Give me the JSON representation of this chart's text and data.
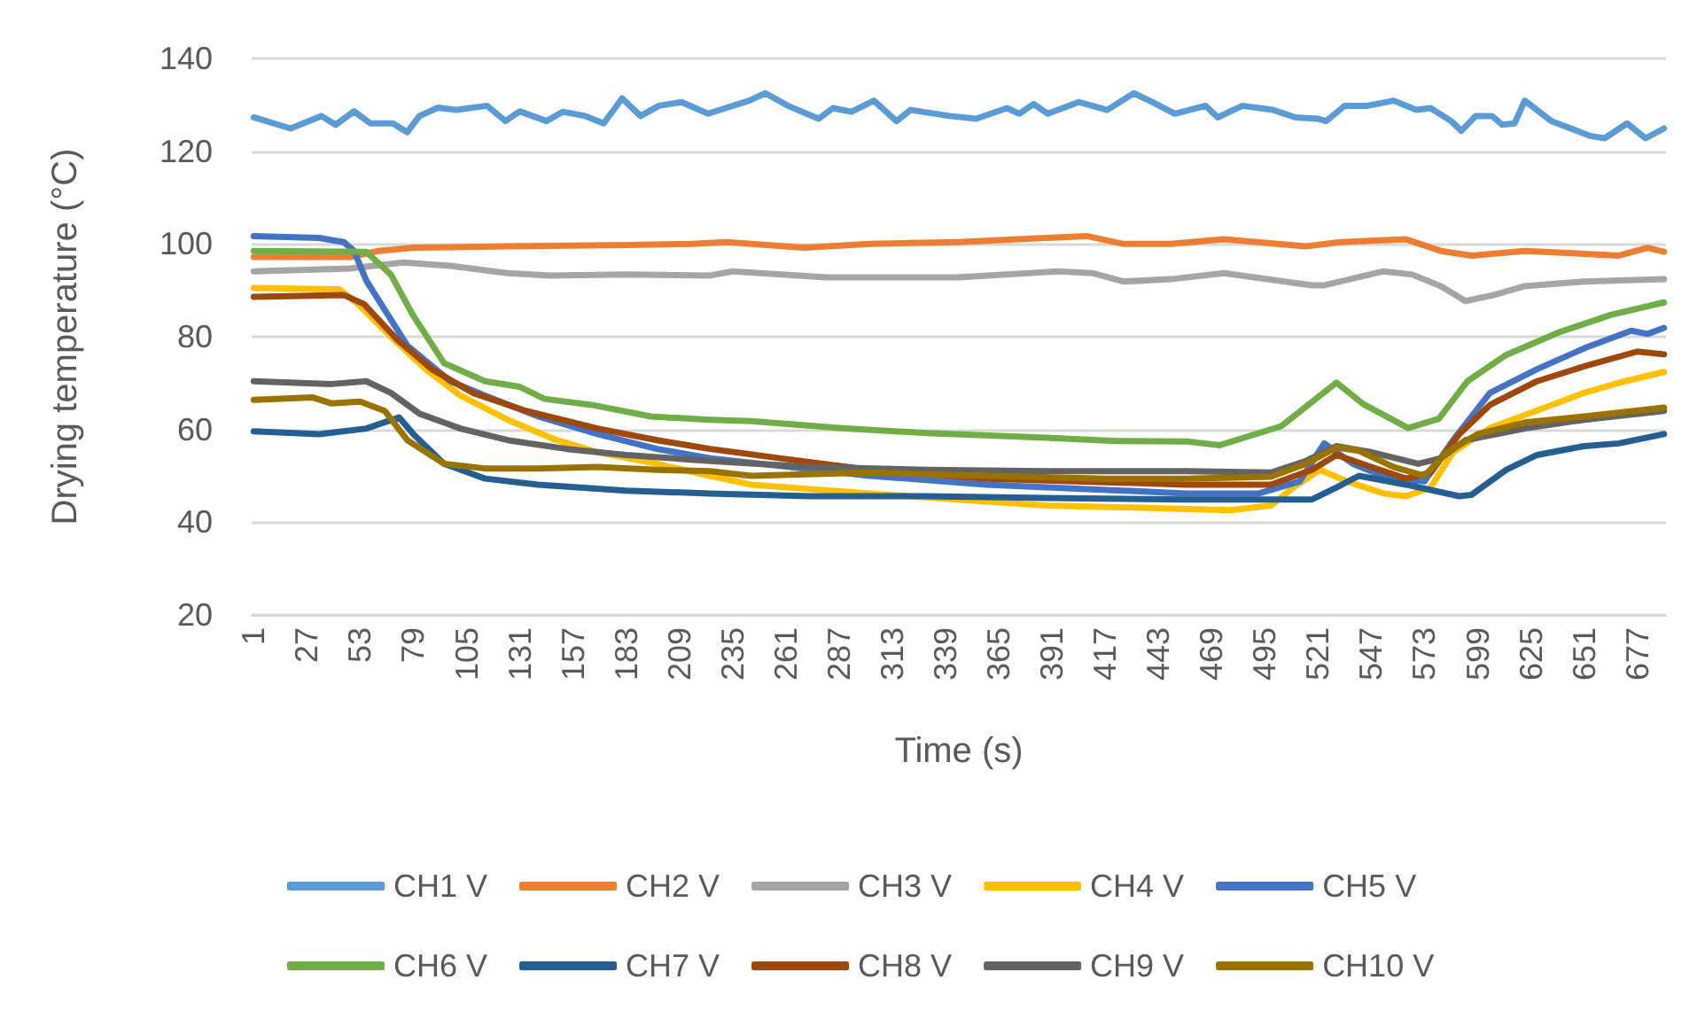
{
  "chart_data": {
    "type": "line",
    "xlabel": "Time (s)",
    "ylabel": "Drying temperature (°C)",
    "xlim": [
      0,
      691
    ],
    "xticks": [
      1,
      27,
      53,
      79,
      105,
      131,
      157,
      183,
      209,
      235,
      261,
      287,
      313,
      339,
      365,
      391,
      417,
      443,
      469,
      495,
      521,
      547,
      573,
      599,
      625,
      651,
      677
    ],
    "ylim": [
      20,
      140
    ],
    "yticks": [
      20,
      40,
      60,
      80,
      100,
      120,
      140
    ],
    "grid": "y",
    "legend": "bottom",
    "marker": "none",
    "line_style": "solid",
    "series": [
      {
        "name": "CH1 V",
        "color": "#5b9bd5",
        "x": [
          1,
          19,
          34,
          41,
          50,
          58,
          69,
          76,
          82,
          91,
          100,
          115,
          124,
          131,
          144,
          152,
          163,
          172,
          181,
          190,
          199,
          210,
          223,
          243,
          251,
          262,
          277,
          284,
          293,
          304,
          315,
          322,
          341,
          354,
          369,
          375,
          382,
          389,
          404,
          418,
          431,
          440,
          451,
          466,
          472,
          484,
          499,
          510,
          521,
          525,
          534,
          545,
          558,
          569,
          576,
          586,
          591,
          598,
          606,
          611,
          617,
          622,
          635,
          654,
          661,
          672,
          681,
          690
        ],
        "values": [
          127.3,
          124.9,
          127.6,
          125.7,
          128.6,
          126,
          126,
          124.1,
          127.6,
          129.4,
          128.9,
          129.8,
          126.5,
          128.6,
          126.5,
          128.5,
          127.6,
          126,
          131.4,
          127.6,
          129.8,
          130.6,
          128.1,
          130.9,
          132.5,
          129.8,
          127,
          129.3,
          128.5,
          130.9,
          126.5,
          128.9,
          127.6,
          127,
          129.3,
          128.1,
          130.2,
          128.1,
          130.6,
          128.9,
          132.5,
          130.6,
          128.1,
          129.8,
          127.3,
          129.8,
          128.9,
          127.3,
          127,
          126.5,
          129.8,
          129.8,
          130.9,
          128.9,
          129.3,
          126.5,
          124.4,
          127.6,
          127.6,
          125.7,
          126,
          130.9,
          126.5,
          123.3,
          122.8,
          126,
          122.8,
          124.9
        ]
      },
      {
        "name": "CH2 V",
        "color": "#ed7d31",
        "x": [
          1,
          48,
          62,
          79,
          125,
          183,
          215,
          232,
          270,
          302,
          345,
          388,
          408,
          426,
          449,
          475,
          515,
          532,
          564,
          581,
          596,
          622,
          668,
          682,
          690
        ],
        "values": [
          97.2,
          97.2,
          98.5,
          99.2,
          99.5,
          99.8,
          100,
          100.4,
          99.2,
          100,
          100.4,
          101.3,
          101.7,
          100,
          100,
          101,
          99.5,
          100.4,
          101,
          98.5,
          97.5,
          98.5,
          97.5,
          99.2,
          98.3
        ]
      },
      {
        "name": "CH3 V",
        "color": "#a5a5a5",
        "x": [
          1,
          48,
          74,
          97,
          125,
          146,
          183,
          224,
          235,
          281,
          345,
          394,
          411,
          426,
          449,
          475,
          518,
          524,
          553,
          567,
          581,
          593,
          607,
          622,
          651,
          690
        ],
        "values": [
          94.1,
          94.7,
          96,
          95.3,
          93.7,
          93.2,
          93.4,
          93.2,
          94.1,
          92.8,
          92.8,
          94.1,
          93.7,
          91.9,
          92.4,
          93.7,
          91.1,
          91.1,
          94.1,
          93.4,
          90.9,
          87.7,
          89,
          90.9,
          91.9,
          92.4
        ]
      },
      {
        "name": "CH4 V",
        "color": "#ffc000",
        "x": [
          1,
          43,
          52,
          68,
          85,
          102,
          125,
          149,
          169,
          198,
          224,
          244,
          302,
          345,
          388,
          446,
          478,
          498,
          509,
          522,
          535,
          553,
          564,
          576,
          587,
          605,
          628,
          651,
          671,
          690
        ],
        "values": [
          90.5,
          90.2,
          87,
          80,
          73,
          67.3,
          62.1,
          57.7,
          55.1,
          52.6,
          50,
          48.1,
          46.2,
          44.9,
          43.6,
          43,
          42.6,
          43.6,
          47.5,
          51.3,
          48.8,
          46.2,
          45.6,
          47.5,
          55.1,
          60.3,
          64.1,
          67.9,
          70.4,
          72.4
        ]
      },
      {
        "name": "CH5 V",
        "color": "#4472c4",
        "x": [
          1,
          33,
          45,
          50,
          56,
          65,
          76,
          97,
          114,
          140,
          169,
          198,
          224,
          302,
          359,
          457,
          492,
          512,
          524,
          538,
          556,
          573,
          587,
          605,
          628,
          651,
          674,
          682,
          690
        ],
        "values": [
          101.7,
          101.3,
          100.4,
          98.5,
          92.1,
          85.8,
          78.1,
          70.4,
          67.3,
          62.8,
          59,
          55.8,
          53.8,
          50,
          48.1,
          46.2,
          46.2,
          48.8,
          57,
          52.6,
          49.4,
          48.8,
          57.7,
          67.9,
          73,
          77.5,
          81.3,
          80.6,
          81.9
        ]
      },
      {
        "name": "CH6 V",
        "color": "#70ad47",
        "x": [
          1,
          56,
          68,
          79,
          94,
          114,
          131,
          143,
          166,
          195,
          224,
          244,
          287,
          330,
          388,
          423,
          457,
          473,
          503,
          530,
          543,
          565,
          580,
          594,
          613,
          639,
          664,
          690
        ],
        "values": [
          98.5,
          98.3,
          93.4,
          84.5,
          74.3,
          70.4,
          69.2,
          66.6,
          65.3,
          62.8,
          62.1,
          61.8,
          60.3,
          59.2,
          58.2,
          57.5,
          57.4,
          56.6,
          60.7,
          70.1,
          65.5,
          60.3,
          62.3,
          70.4,
          76.1,
          81,
          84.7,
          87.4
        ]
      },
      {
        "name": "CH7 V",
        "color": "#255e91",
        "x": [
          1,
          33,
          56,
          72,
          79,
          94,
          114,
          140,
          183,
          224,
          273,
          330,
          388,
          457,
          518,
          530,
          541,
          564,
          590,
          596,
          613,
          628,
          651,
          668,
          690
        ],
        "values": [
          59.6,
          59,
          60.2,
          62.6,
          59,
          52.6,
          49.4,
          48.1,
          46.8,
          46.2,
          45.6,
          45.6,
          45.2,
          44.9,
          44.9,
          47.5,
          50,
          48.1,
          45.6,
          45.9,
          51.3,
          54.5,
          56.4,
          57,
          59
        ]
      },
      {
        "name": "CH8 V",
        "color": "#9e480e",
        "x": [
          1,
          45,
          55,
          71,
          88,
          108,
          134,
          169,
          198,
          224,
          258,
          302,
          359,
          457,
          498,
          518,
          530,
          547,
          564,
          576,
          590,
          605,
          628,
          651,
          677,
          690
        ],
        "values": [
          88.6,
          89,
          87,
          79.4,
          73,
          67.9,
          64,
          60.2,
          57.7,
          55.8,
          53.8,
          51.3,
          49.4,
          48.1,
          48.1,
          51.3,
          54.5,
          51.9,
          49.4,
          50.7,
          59,
          65.3,
          70.4,
          73.6,
          76.8,
          76.2
        ]
      },
      {
        "name": "CH9 V",
        "color": "#636363",
        "x": [
          1,
          39,
          56,
          68,
          82,
          102,
          125,
          154,
          183,
          224,
          273,
          330,
          388,
          457,
          498,
          515,
          530,
          547,
          570,
          581,
          593,
          622,
          651,
          690
        ],
        "values": [
          70.4,
          69.8,
          70.4,
          67.9,
          63.4,
          60.2,
          57.7,
          55.8,
          54.5,
          53.2,
          51.9,
          51.3,
          51,
          51,
          50.7,
          53.2,
          56.4,
          55.1,
          52.6,
          53.8,
          57.7,
          60.2,
          62.1,
          64
        ]
      },
      {
        "name": "CH10 V",
        "color": "#997300",
        "x": [
          1,
          30,
          39,
          53,
          65,
          76,
          94,
          114,
          140,
          169,
          198,
          224,
          244,
          302,
          359,
          417,
          457,
          498,
          515,
          530,
          541,
          558,
          573,
          584,
          599,
          622,
          651,
          690
        ],
        "values": [
          66.4,
          66.9,
          65.6,
          66,
          64,
          57.7,
          52.6,
          51.6,
          51.6,
          51.9,
          51.3,
          51,
          50,
          50.7,
          50,
          49.4,
          49.4,
          49.8,
          52.6,
          56.1,
          55.4,
          51.9,
          50,
          55.1,
          59,
          61.5,
          62.8,
          64.7
        ]
      }
    ]
  }
}
